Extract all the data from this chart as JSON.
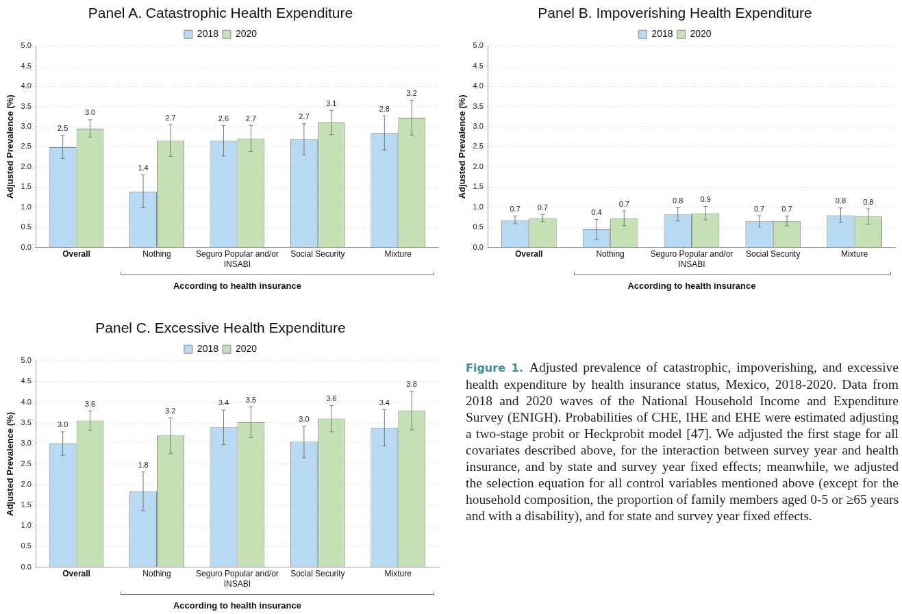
{
  "chart_data": [
    {
      "type": "bar",
      "title": "Panel A. Catastrophic Health Expenditure",
      "xlabel": "According to health insurance",
      "ylabel": "Adjusted Prevalence (%)",
      "categories": [
        "Overall",
        "Nothing",
        "Seguro Popular and/or INSABI",
        "Social Security",
        "Mixture"
      ],
      "ylim": [
        0,
        5
      ],
      "yticks": [
        {
          "value": 0,
          "label": "0.0"
        },
        {
          "value": 0.5,
          "label": "0.5"
        },
        {
          "value": 1,
          "label": "1.0"
        },
        {
          "value": 1.5,
          "label": "1.5"
        },
        {
          "value": 2,
          "label": "2.0"
        },
        {
          "value": 2.5,
          "label": "2.5"
        },
        {
          "value": 3,
          "label": "3.0"
        },
        {
          "value": 3.5,
          "label": "3.5"
        },
        {
          "value": 4,
          "label": "4.0"
        },
        {
          "value": 4.5,
          "label": "4.5"
        },
        {
          "value": 5,
          "label": "5.0"
        }
      ],
      "grid": "y",
      "legend": "top",
      "series": [
        {
          "name": "2018",
          "color": "#b7d9f1",
          "values": [
            2.49,
            1.39,
            2.65,
            2.69,
            2.83
          ],
          "errors": [
            [
              2.21,
              2.78
            ],
            [
              0.99,
              1.8
            ],
            [
              2.27,
              3.03
            ],
            [
              2.3,
              3.07
            ],
            [
              2.42,
              3.26
            ]
          ],
          "value_labels": [
            "2.5",
            "1.4",
            "2.6",
            "2.7",
            "2.8"
          ]
        },
        {
          "name": "2020",
          "color": "#c5e0b4",
          "values": [
            2.95,
            2.65,
            2.7,
            3.1,
            3.22
          ],
          "errors": [
            [
              2.74,
              3.17
            ],
            [
              2.26,
              3.05
            ],
            [
              2.38,
              3.03
            ],
            [
              2.8,
              3.4
            ],
            [
              2.79,
              3.65
            ]
          ],
          "value_labels": [
            "3.0",
            "2.7",
            "2.7",
            "3.1",
            "3.2"
          ]
        }
      ]
    },
    {
      "type": "bar",
      "title": "Panel B. Impoverishing Health Expenditure",
      "xlabel": "According to health insurance",
      "ylabel": "Adjusted Prevalence (%)",
      "categories": [
        "Overall",
        "Nothing",
        "Seguro Popular and/or INSABI",
        "Social Security",
        "Mixture"
      ],
      "ylim": [
        0,
        5
      ],
      "yticks": [
        {
          "value": 0,
          "label": "0.0"
        },
        {
          "value": 0.5,
          "label": "0.5"
        },
        {
          "value": 1,
          "label": "1.0"
        },
        {
          "value": 1.5,
          "label": "1.5"
        },
        {
          "value": 2,
          "label": "2.0"
        },
        {
          "value": 2.5,
          "label": "2.5"
        },
        {
          "value": 3,
          "label": "3.0"
        },
        {
          "value": 3.5,
          "label": "3.5"
        },
        {
          "value": 4,
          "label": "4.0"
        },
        {
          "value": 4.5,
          "label": "4.5"
        },
        {
          "value": 5,
          "label": "5.0"
        }
      ],
      "grid": "y",
      "legend": "top",
      "series": [
        {
          "name": "2018",
          "color": "#b7d9f1",
          "values": [
            0.68,
            0.45,
            0.82,
            0.65,
            0.8
          ],
          "errors": [
            [
              0.59,
              0.78
            ],
            [
              0.2,
              0.7
            ],
            [
              0.66,
              0.99
            ],
            [
              0.51,
              0.79
            ],
            [
              0.62,
              0.98
            ]
          ],
          "value_labels": [
            "0.7",
            "0.4",
            "0.8",
            "0.7",
            "0.8"
          ]
        },
        {
          "name": "2020",
          "color": "#c5e0b4",
          "values": [
            0.73,
            0.72,
            0.85,
            0.66,
            0.77
          ],
          "errors": [
            [
              0.64,
              0.82
            ],
            [
              0.54,
              0.91
            ],
            [
              0.68,
              1.02
            ],
            [
              0.54,
              0.78
            ],
            [
              0.58,
              0.96
            ]
          ],
          "value_labels": [
            "0.7",
            "0.7",
            "0.9",
            "0.7",
            "0.8"
          ]
        }
      ]
    },
    {
      "type": "bar",
      "title": "Panel C. Excessive Health Expenditure",
      "xlabel": "According to health insurance",
      "ylabel": "Adjusted Prevalence (%)",
      "categories": [
        "Overall",
        "Nothing",
        "Seguro Popular and/or INSABI",
        "Social Security",
        "Mixture"
      ],
      "ylim": [
        0,
        5
      ],
      "yticks": [
        {
          "value": 0,
          "label": "0.0"
        },
        {
          "value": 0.5,
          "label": "0.5"
        },
        {
          "value": 1,
          "label": "1.0"
        },
        {
          "value": 1.5,
          "label": "1.5"
        },
        {
          "value": 2,
          "label": "2.0"
        },
        {
          "value": 2.5,
          "label": "2.5"
        },
        {
          "value": 3,
          "label": "3.0"
        },
        {
          "value": 3.5,
          "label": "3.5"
        },
        {
          "value": 4,
          "label": "4.0"
        },
        {
          "value": 4.5,
          "label": "4.5"
        },
        {
          "value": 5,
          "label": "5.0"
        }
      ],
      "grid": "y",
      "legend": "top",
      "series": [
        {
          "name": "2018",
          "color": "#b7d9f1",
          "values": [
            3.0,
            1.84,
            3.39,
            3.04,
            3.38
          ],
          "errors": [
            [
              2.71,
              3.28
            ],
            [
              1.37,
              2.31
            ],
            [
              2.97,
              3.81
            ],
            [
              2.65,
              3.42
            ],
            [
              2.94,
              3.82
            ]
          ],
          "value_labels": [
            "3.0",
            "1.8",
            "3.4",
            "3.0",
            "3.4"
          ]
        },
        {
          "name": "2020",
          "color": "#c5e0b4",
          "values": [
            3.55,
            3.19,
            3.51,
            3.6,
            3.8
          ],
          "errors": [
            [
              3.32,
              3.79
            ],
            [
              2.75,
              3.62
            ],
            [
              3.14,
              3.89
            ],
            [
              3.28,
              3.92
            ],
            [
              3.33,
              4.26
            ]
          ],
          "value_labels": [
            "3.6",
            "3.2",
            "3.5",
            "3.6",
            "3.8"
          ]
        }
      ]
    },
    {
      "type": "other",
      "title": "Figure 1.",
      "annotations": [
        "Adjusted prevalence of catastrophic, impoverishing, and excessive health expenditure by health insurance status, Mexico, 2018-2020. Data from 2018 and 2020 waves of the National Household Income and Expenditure Survey (ENIGH). Probabilities of CHE, IHE and EHE were estimated adjusting a two-stage probit or Heckprobit model [47]. We adjusted the first stage for all covariates described above, for the interaction between survey year and health insurance, and by state and survey year fixed effects; meanwhile, we adjusted the selection equation for all control variables mentioned above (except for the household composition, the proportion of family members aged 0-5 or ≥65 years and with a disability), and for state and survey year fixed effects."
      ]
    }
  ]
}
